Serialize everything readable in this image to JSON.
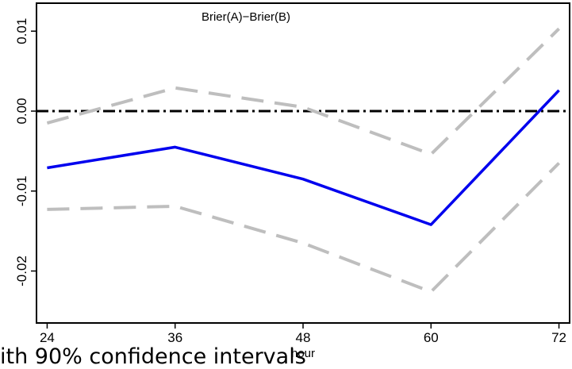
{
  "chart_data": {
    "type": "line",
    "title": "Brier(A)−Brier(B)",
    "xlabel": "hour",
    "ylabel": "",
    "x": [
      24,
      36,
      48,
      60,
      72
    ],
    "x_ticks": [
      "24",
      "36",
      "48",
      "60",
      "72"
    ],
    "y_ticks": [
      "-0.02",
      "-0.01",
      "0.00",
      "0.01"
    ],
    "y_tick_values": [
      -0.02,
      -0.01,
      0.0,
      0.01
    ],
    "xlim": [
      23,
      73
    ],
    "ylim": [
      -0.0265,
      0.0135
    ],
    "grid": false,
    "series": [
      {
        "role": "estimate",
        "values": [
          -0.0071,
          -0.0045,
          -0.0085,
          -0.0142,
          0.0026
        ],
        "color": "#0000ee",
        "style": "solid"
      },
      {
        "role": "upper",
        "values": [
          -0.0015,
          0.0029,
          0.0005,
          -0.0054,
          0.0103
        ],
        "color": "#bebebe",
        "style": "dashed"
      },
      {
        "role": "lower",
        "values": [
          -0.0123,
          -0.0119,
          -0.0165,
          -0.0226,
          -0.0065
        ],
        "color": "#bebebe",
        "style": "dashed"
      }
    ],
    "reference_line": {
      "y": 0,
      "color": "#000000",
      "style": "dashdot"
    }
  },
  "caption": "ith 90% confidence intervals"
}
